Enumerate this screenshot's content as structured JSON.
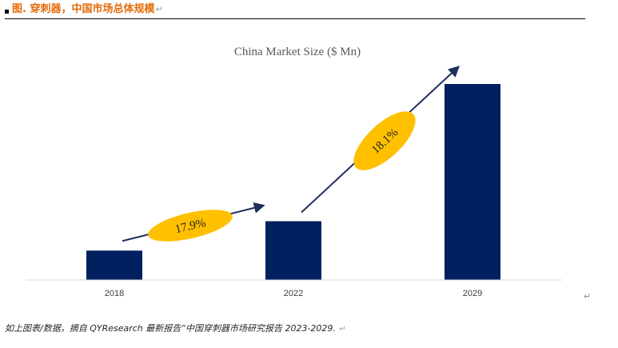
{
  "header": {
    "title": "图.  穿刺器，中国市场总体规模",
    "return_mark": "↵"
  },
  "chart_data": {
    "type": "bar",
    "title": "China Market Size ($ Mn)",
    "categories": [
      "2018",
      "2022",
      "2029"
    ],
    "values": [
      15,
      30,
      100
    ],
    "xlabel": "",
    "ylabel": "",
    "ylim": [
      0,
      100
    ],
    "grid": false,
    "legend": "none",
    "bar_color": "#002060",
    "annotations": [
      {
        "label": "17.9%",
        "from": "2018",
        "to": "2022",
        "fill": "#ffc000"
      },
      {
        "label": "18.1%",
        "from": "2022",
        "to": "2029",
        "fill": "#ffc000"
      }
    ]
  },
  "paragraph_mark": "↵",
  "source": {
    "text": "如上图表/数据，摘自 QYResearch 最新报告“中国穿刺器市场研究报告 2023-2029.",
    "return_mark": "↵"
  }
}
